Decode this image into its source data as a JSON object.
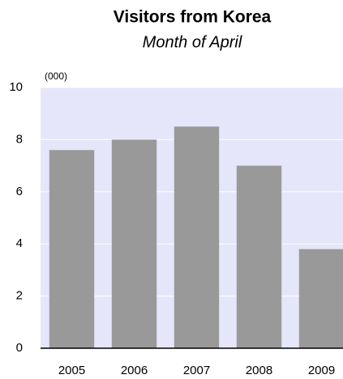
{
  "chart_data": {
    "type": "bar",
    "title": "Visitors from Korea",
    "subtitle": "Month of April",
    "unit_label": "(000)",
    "categories": [
      "2005",
      "2006",
      "2007",
      "2008",
      "2009"
    ],
    "values": [
      7.6,
      8.0,
      8.5,
      7.0,
      3.8
    ],
    "color": "#999999",
    "ylim": [
      0,
      10
    ],
    "yticks": [
      0,
      2,
      4,
      6,
      8,
      10
    ],
    "grid": true
  }
}
